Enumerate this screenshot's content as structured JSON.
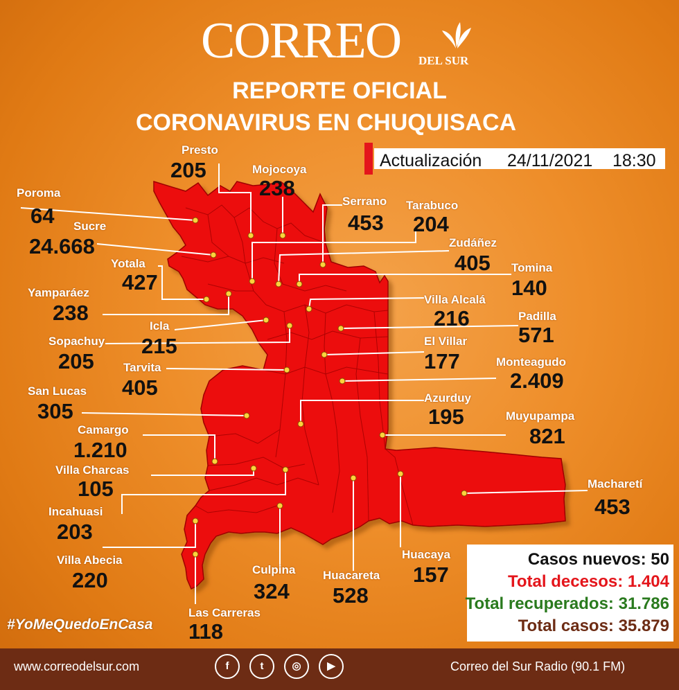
{
  "brand": {
    "name": "CORREO",
    "sub": "DEL SUR"
  },
  "title": {
    "line1": "REPORTE OFICIAL",
    "line2": "CORONAVIRUS EN CHUQUISACA"
  },
  "update": {
    "label": "Actualización",
    "date": "24/11/2021",
    "time": "18:30"
  },
  "municipalities": [
    {
      "name": "Presto",
      "cases": "205"
    },
    {
      "name": "Mojocoya",
      "cases": "238"
    },
    {
      "name": "Poroma",
      "cases": "64"
    },
    {
      "name": "Sucre",
      "cases": "24.668"
    },
    {
      "name": "Serrano",
      "cases": "453"
    },
    {
      "name": "Tarabuco",
      "cases": "204"
    },
    {
      "name": "Zudáñez",
      "cases": "405"
    },
    {
      "name": "Yotala",
      "cases": "427"
    },
    {
      "name": "Tomina",
      "cases": "140"
    },
    {
      "name": "Yamparáez",
      "cases": "238"
    },
    {
      "name": "Villa Alcalá",
      "cases": "216"
    },
    {
      "name": "Padilla",
      "cases": "571"
    },
    {
      "name": "Icla",
      "cases": "215"
    },
    {
      "name": "Sopachuy",
      "cases": "205"
    },
    {
      "name": "El Villar",
      "cases": "177"
    },
    {
      "name": "Tarvita",
      "cases": "405"
    },
    {
      "name": "Monteagudo",
      "cases": "2.409"
    },
    {
      "name": "San Lucas",
      "cases": "305"
    },
    {
      "name": "Azurduy",
      "cases": "195"
    },
    {
      "name": "Muyupampa",
      "cases": "821"
    },
    {
      "name": "Camargo",
      "cases": "1.210"
    },
    {
      "name": "Villa Charcas",
      "cases": "105"
    },
    {
      "name": "Macharetí",
      "cases": "453"
    },
    {
      "name": "Incahuasi",
      "cases": "203"
    },
    {
      "name": "Villa Abecia",
      "cases": "220"
    },
    {
      "name": "Culpina",
      "cases": "324"
    },
    {
      "name": "Huacareta",
      "cases": "528"
    },
    {
      "name": "Huacaya",
      "cases": "157"
    },
    {
      "name": "Las Carreras",
      "cases": "118"
    }
  ],
  "summary": {
    "new": "Casos nuevos: 50",
    "deaths": "Total decesos: 1.404",
    "recovered": "Total recuperados: 31.786",
    "total": "Total casos: 35.879"
  },
  "colors": {
    "map_red": "#ec1111",
    "deaths": "#e4151b",
    "recovered": "#2a7a1e",
    "total": "#6d2c14",
    "footer": "#6d2c14"
  },
  "hashtag": "#YoMeQuedoEnCasa",
  "footer": {
    "website": "www.correodelsur.com",
    "radio": "Correo del Sur Radio (90.1 FM)"
  },
  "social_icons": [
    "facebook-icon",
    "twitter-icon",
    "instagram-icon",
    "youtube-icon"
  ]
}
